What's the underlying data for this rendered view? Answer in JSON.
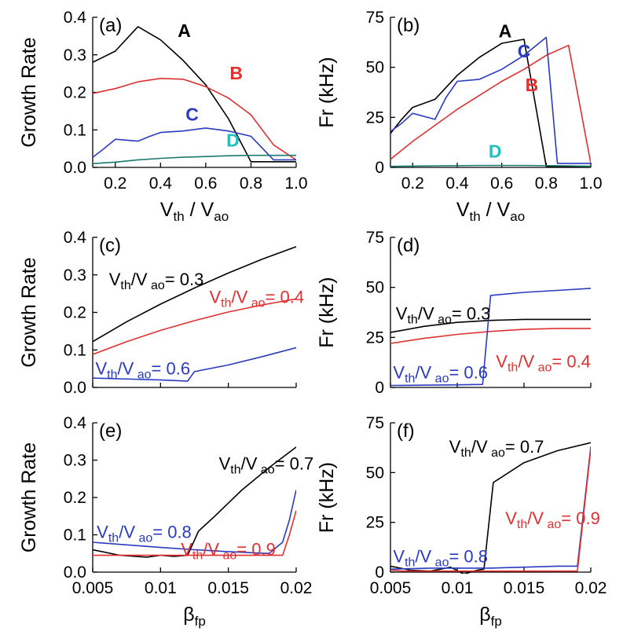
{
  "chart_data": [
    {
      "type": "line",
      "panel_label": "(a)",
      "ylabel": "Growth Rate",
      "xlabel": {
        "base": "V",
        "sub1": "th",
        "sep": " / V",
        "sub2": "ao"
      },
      "xlim": [
        0.1,
        1.0
      ],
      "ylim": [
        0,
        0.4
      ],
      "xticks": [
        0.2,
        0.4,
        0.6,
        0.8,
        1.0
      ],
      "xtick_labels": [
        "0.2",
        "0.4",
        "0.6",
        "0.8",
        "1.0"
      ],
      "yticks": [
        0.0,
        0.1,
        0.2,
        0.3,
        0.4
      ],
      "ytick_labels": [
        "0.0",
        "0.1",
        "0.2",
        "0.3",
        "0.4"
      ],
      "series": [
        {
          "name": "A",
          "color": "#000000",
          "x": [
            0.1,
            0.2,
            0.3,
            0.4,
            0.5,
            0.6,
            0.7,
            0.8,
            0.9,
            1.0
          ],
          "y": [
            0.28,
            0.31,
            0.375,
            0.34,
            0.285,
            0.22,
            0.13,
            0.015,
            0.015,
            0.015
          ]
        },
        {
          "name": "B",
          "color": "#e03030",
          "x": [
            0.1,
            0.2,
            0.3,
            0.4,
            0.5,
            0.6,
            0.7,
            0.8,
            0.9,
            1.0
          ],
          "y": [
            0.197,
            0.21,
            0.228,
            0.237,
            0.235,
            0.215,
            0.185,
            0.14,
            0.06,
            0.02
          ]
        },
        {
          "name": "C",
          "color": "#2a3bc0",
          "x": [
            0.1,
            0.15,
            0.2,
            0.3,
            0.35,
            0.4,
            0.5,
            0.6,
            0.7,
            0.8,
            0.9,
            1.0
          ],
          "y": [
            0.027,
            0.05,
            0.075,
            0.07,
            0.082,
            0.093,
            0.097,
            0.105,
            0.097,
            0.083,
            0.02,
            0.02
          ]
        },
        {
          "name": "D",
          "color": "#1a7a70",
          "x": [
            0.1,
            0.2,
            0.3,
            0.4,
            0.5,
            0.6,
            0.7,
            0.8,
            0.9,
            1.0
          ],
          "y": [
            0.01,
            0.014,
            0.02,
            0.024,
            0.027,
            0.029,
            0.031,
            0.032,
            0.032,
            0.032
          ]
        }
      ],
      "annotations": [
        {
          "text": "A",
          "color": "#000000",
          "x": 0.505,
          "y": 0.348,
          "bold": true
        },
        {
          "text": "B",
          "color": "#e03030",
          "x": 0.735,
          "y": 0.235,
          "bold": true
        },
        {
          "text": "C",
          "color": "#2a3bc0",
          "x": 0.54,
          "y": 0.125,
          "bold": true
        },
        {
          "text": "D",
          "color": "#20c0c0",
          "x": 0.72,
          "y": 0.055,
          "bold": true
        }
      ]
    },
    {
      "type": "line",
      "panel_label": "(b)",
      "ylabel": "Fr (kHz)",
      "xlabel": {
        "base": "V",
        "sub1": "th",
        "sep": " / V",
        "sub2": "ao"
      },
      "xlim": [
        0.1,
        1.0
      ],
      "ylim": [
        0,
        75
      ],
      "xticks": [
        0.2,
        0.4,
        0.6,
        0.8,
        1.0
      ],
      "xtick_labels": [
        "0.2",
        "0.4",
        "0.6",
        "0.8",
        "1.0"
      ],
      "yticks": [
        0,
        25,
        50,
        75
      ],
      "ytick_labels": [
        "0",
        "25",
        "50",
        "75"
      ],
      "series": [
        {
          "name": "A",
          "color": "#000000",
          "x": [
            0.1,
            0.15,
            0.2,
            0.3,
            0.4,
            0.5,
            0.6,
            0.7,
            0.8,
            0.9,
            1.0
          ],
          "y": [
            17,
            24,
            30,
            34,
            46,
            55,
            62,
            64,
            0.5,
            0.5,
            0.5
          ]
        },
        {
          "name": "B",
          "color": "#e03030",
          "x": [
            0.1,
            0.2,
            0.3,
            0.4,
            0.5,
            0.6,
            0.7,
            0.8,
            0.9,
            1.0
          ],
          "y": [
            4,
            13,
            21,
            29,
            36,
            43,
            49,
            56,
            61,
            2
          ]
        },
        {
          "name": "C",
          "color": "#2a3bc0",
          "x": [
            0.1,
            0.15,
            0.2,
            0.3,
            0.35,
            0.4,
            0.5,
            0.6,
            0.7,
            0.8,
            0.85,
            0.95,
            1.0
          ],
          "y": [
            18,
            22,
            27,
            24,
            35,
            43,
            44,
            49,
            56,
            65,
            2,
            2,
            2
          ]
        },
        {
          "name": "D",
          "color": "#1a7a70",
          "x": [
            0.1,
            0.3,
            0.5,
            0.7,
            0.9,
            1.0
          ],
          "y": [
            0.5,
            0.8,
            1,
            1,
            0.8,
            0.5
          ]
        }
      ],
      "annotations": [
        {
          "text": "A",
          "color": "#000000",
          "x": 0.615,
          "y": 65,
          "bold": true
        },
        {
          "text": "C",
          "color": "#2a3bc0",
          "x": 0.7,
          "y": 55,
          "bold": true
        },
        {
          "text": "B",
          "color": "#e03030",
          "x": 0.735,
          "y": 38,
          "bold": true
        },
        {
          "text": "D",
          "color": "#20c0c0",
          "x": 0.57,
          "y": 5,
          "bold": true
        }
      ]
    },
    {
      "type": "line",
      "panel_label": "(c)",
      "ylabel": "Growth Rate",
      "xlim": [
        0.005,
        0.02
      ],
      "ylim": [
        0,
        0.4
      ],
      "yticks": [
        0.0,
        0.1,
        0.2,
        0.3,
        0.4
      ],
      "ytick_labels": [
        "0.0",
        "0.1",
        "0.2",
        "0.3",
        "0.4"
      ],
      "series": [
        {
          "name": "Vth/Vao = 0.3",
          "color": "#000000",
          "x": [
            0.005,
            0.0075,
            0.01,
            0.0125,
            0.015,
            0.0175,
            0.02
          ],
          "y": [
            0.122,
            0.175,
            0.222,
            0.265,
            0.305,
            0.342,
            0.375
          ]
        },
        {
          "name": "Vth/Vao = 0.4",
          "color": "#e03030",
          "x": [
            0.005,
            0.0075,
            0.01,
            0.0125,
            0.015,
            0.0175,
            0.02
          ],
          "y": [
            0.088,
            0.122,
            0.152,
            0.178,
            0.201,
            0.22,
            0.236
          ]
        },
        {
          "name": "Vth/Vao = 0.6",
          "color": "#2a3bc0",
          "x": [
            0.005,
            0.008,
            0.01,
            0.012,
            0.0125,
            0.015,
            0.0175,
            0.02
          ],
          "y": [
            0.025,
            0.022,
            0.02,
            0.017,
            0.042,
            0.06,
            0.082,
            0.106
          ]
        }
      ],
      "annotations": [
        {
          "color": "#000000",
          "main": "V",
          "sub1": "th",
          "mid": "/V",
          "sub2": " ao",
          "tail": "= 0.3",
          "x": 0.0062,
          "y": 0.272
        },
        {
          "color": "#e03030",
          "main": "V",
          "sub1": "th",
          "mid": "/V",
          "sub2": " ao",
          "tail": "= 0.4",
          "x": 0.0136,
          "y": 0.225
        },
        {
          "color": "#2a3bc0",
          "main": "V",
          "sub1": "th",
          "mid": "/V",
          "sub2": " ao",
          "tail": "= 0.6",
          "x": 0.0052,
          "y": 0.035
        }
      ]
    },
    {
      "type": "line",
      "panel_label": "(d)",
      "ylabel": "Fr (kHz)",
      "xlim": [
        0.005,
        0.02
      ],
      "ylim": [
        0,
        75
      ],
      "yticks": [
        0,
        25,
        50,
        75
      ],
      "ytick_labels": [
        "0",
        "25",
        "50",
        "75"
      ],
      "series": [
        {
          "name": "Vth/Vao = 0.3",
          "color": "#000000",
          "x": [
            0.005,
            0.0075,
            0.01,
            0.0125,
            0.015,
            0.0175,
            0.02
          ],
          "y": [
            27.5,
            30.5,
            32.5,
            33.5,
            34,
            34,
            34
          ]
        },
        {
          "name": "Vth/Vao = 0.4",
          "color": "#e03030",
          "x": [
            0.005,
            0.0075,
            0.01,
            0.0125,
            0.015,
            0.0175,
            0.02
          ],
          "y": [
            22,
            24.5,
            26.5,
            28,
            29,
            29.5,
            29.5
          ]
        },
        {
          "name": "Vth/Vao = 0.6",
          "color": "#2a3bc0",
          "x": [
            0.005,
            0.01,
            0.0119,
            0.0125,
            0.015,
            0.0175,
            0.02
          ],
          "y": [
            1,
            1.3,
            1.5,
            46,
            47.5,
            48.5,
            49.5
          ]
        }
      ],
      "annotations": [
        {
          "color": "#000000",
          "main": "V",
          "sub1": "th",
          "mid": "/V",
          "sub2": " ao",
          "tail": "= 0.3",
          "x": 0.0054,
          "y": 34
        },
        {
          "color": "#e03030",
          "main": "V",
          "sub1": "th",
          "mid": "/V",
          "sub2": " ao",
          "tail": "= 0.4",
          "x": 0.0129,
          "y": 10
        },
        {
          "color": "#2a3bc0",
          "main": "V",
          "sub1": "th",
          "mid": "/V",
          "sub2": " ao",
          "tail": "= 0.6",
          "x": 0.0052,
          "y": 4.5
        }
      ]
    },
    {
      "type": "line",
      "panel_label": "(e)",
      "ylabel": "Growth Rate",
      "xlabel": {
        "base": "β",
        "sub1": "fp"
      },
      "xlim": [
        0.005,
        0.02
      ],
      "ylim": [
        0,
        0.4
      ],
      "xticks": [
        0.005,
        0.01,
        0.015,
        0.02
      ],
      "xtick_labels": [
        "0.005",
        "0.01",
        "0.015",
        "0.02"
      ],
      "yticks": [
        0.0,
        0.1,
        0.2,
        0.3,
        0.4
      ],
      "ytick_labels": [
        "0.0",
        "0.1",
        "0.2",
        "0.3",
        "0.4"
      ],
      "series": [
        {
          "name": "Vth/Vao = 0.7",
          "color": "#000000",
          "x": [
            0.005,
            0.007,
            0.009,
            0.01,
            0.011,
            0.012,
            0.0128,
            0.014,
            0.016,
            0.018,
            0.02
          ],
          "y": [
            0.06,
            0.045,
            0.04,
            0.045,
            0.042,
            0.045,
            0.11,
            0.15,
            0.22,
            0.28,
            0.335
          ]
        },
        {
          "name": "Vth/Vao = 0.8",
          "color": "#2a3bc0",
          "x": [
            0.005,
            0.0075,
            0.01,
            0.0125,
            0.015,
            0.018,
            0.019,
            0.0195,
            0.02
          ],
          "y": [
            0.08,
            0.073,
            0.066,
            0.06,
            0.055,
            0.05,
            0.08,
            0.14,
            0.22
          ]
        },
        {
          "name": "Vth/Vao = 0.9",
          "color": "#e03030",
          "x": [
            0.005,
            0.0075,
            0.01,
            0.0125,
            0.015,
            0.0175,
            0.019,
            0.0195,
            0.02
          ],
          "y": [
            0.045,
            0.045,
            0.045,
            0.045,
            0.045,
            0.045,
            0.045,
            0.1,
            0.165
          ]
        }
      ],
      "annotations": [
        {
          "color": "#000000",
          "main": "V",
          "sub1": "th",
          "mid": "/V",
          "sub2": " ao",
          "tail": "= 0.7",
          "x": 0.0143,
          "y": 0.275
        },
        {
          "color": "#2a3bc0",
          "main": "V",
          "sub1": "th",
          "mid": "/V",
          "sub2": " ao",
          "tail": "= 0.8",
          "x": 0.0053,
          "y": 0.092
        },
        {
          "color": "#e03030",
          "main": "V",
          "sub1": "th",
          "mid": "/V",
          "sub2": " ao",
          "tail": "= 0.9",
          "x": 0.0115,
          "y": 0.045
        }
      ]
    },
    {
      "type": "line",
      "panel_label": "(f)",
      "ylabel": "Fr (kHz)",
      "xlabel": {
        "base": "β",
        "sub1": "fp"
      },
      "xlim": [
        0.005,
        0.02
      ],
      "ylim": [
        0,
        75
      ],
      "xticks": [
        0.005,
        0.01,
        0.015,
        0.02
      ],
      "xtick_labels": [
        "0.005",
        "0.01",
        "0.015",
        "0.02"
      ],
      "yticks": [
        0,
        25,
        50,
        75
      ],
      "ytick_labels": [
        "0",
        "25",
        "50",
        "75"
      ],
      "series": [
        {
          "name": "Vth/Vao = 0.7",
          "color": "#000000",
          "x": [
            0.005,
            0.0065,
            0.008,
            0.0095,
            0.0105,
            0.0115,
            0.012,
            0.0127,
            0.015,
            0.0175,
            0.02
          ],
          "y": [
            3,
            1,
            0.5,
            2.5,
            -1,
            1,
            1.5,
            45,
            55,
            61,
            65
          ]
        },
        {
          "name": "Vth/Vao = 0.8",
          "color": "#2a3bc0",
          "x": [
            0.005,
            0.008,
            0.01,
            0.0125,
            0.015,
            0.0175,
            0.019,
            0.02
          ],
          "y": [
            1.5,
            2,
            2,
            2,
            2.5,
            3,
            3,
            63
          ]
        },
        {
          "name": "Vth/Vao = 0.9",
          "color": "#e03030",
          "x": [
            0.005,
            0.006,
            0.01,
            0.015,
            0.019,
            0.02
          ],
          "y": [
            1,
            0.5,
            0.5,
            0.5,
            0.5,
            62
          ]
        }
      ],
      "annotations": [
        {
          "color": "#000000",
          "main": "V",
          "sub1": "th",
          "mid": "/V",
          "sub2": " ao",
          "tail": "= 0.7",
          "x": 0.0094,
          "y": 60
        },
        {
          "color": "#e03030",
          "main": "V",
          "sub1": "th",
          "mid": "/V",
          "sub2": " ao",
          "tail": "= 0.9",
          "x": 0.0136,
          "y": 24
        },
        {
          "color": "#2a3bc0",
          "main": "V",
          "sub1": "th",
          "mid": "/V",
          "sub2": " ao",
          "tail": "= 0.8",
          "x": 0.0052,
          "y": 5
        }
      ]
    }
  ]
}
